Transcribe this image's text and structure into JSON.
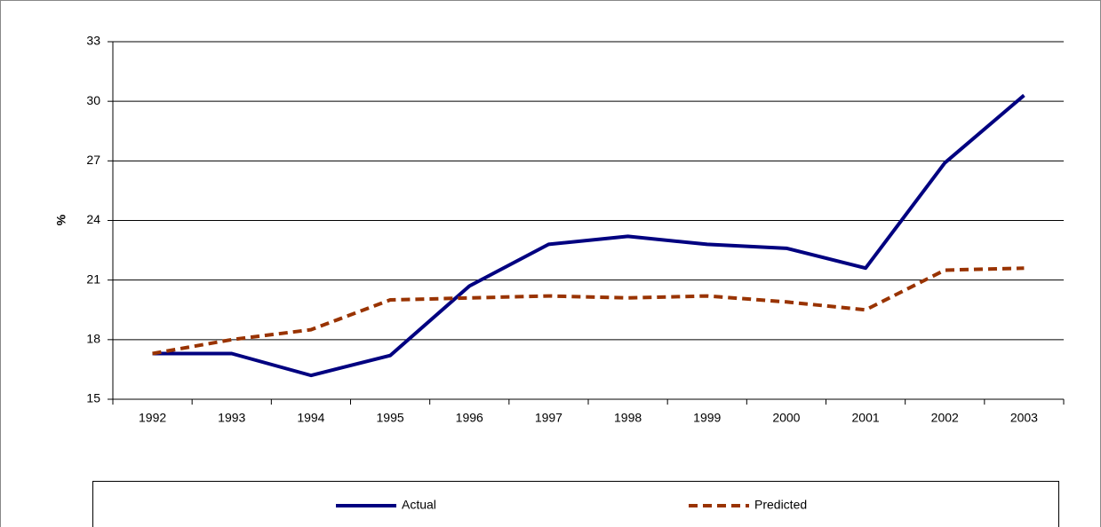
{
  "chart_data": {
    "type": "line",
    "ylabel": "%",
    "categories": [
      "1992",
      "1993",
      "1994",
      "1995",
      "1996",
      "1997",
      "1998",
      "1999",
      "2000",
      "2001",
      "2002",
      "2003"
    ],
    "series": [
      {
        "name": "Actual",
        "color": "#000080",
        "dashed": false,
        "values": [
          17.3,
          17.3,
          16.2,
          17.2,
          20.7,
          22.8,
          23.2,
          22.8,
          22.6,
          21.6,
          26.9,
          30.3
        ]
      },
      {
        "name": "Predicted",
        "color": "#993300",
        "dashed": true,
        "values": [
          17.3,
          18.0,
          18.5,
          20.0,
          20.1,
          20.2,
          20.1,
          20.2,
          19.9,
          19.5,
          21.5,
          21.6
        ]
      }
    ],
    "ylim": [
      15,
      33
    ],
    "yticks": [
      15,
      18,
      21,
      24,
      27,
      30,
      33
    ],
    "grid": true,
    "legend": "bottom"
  }
}
